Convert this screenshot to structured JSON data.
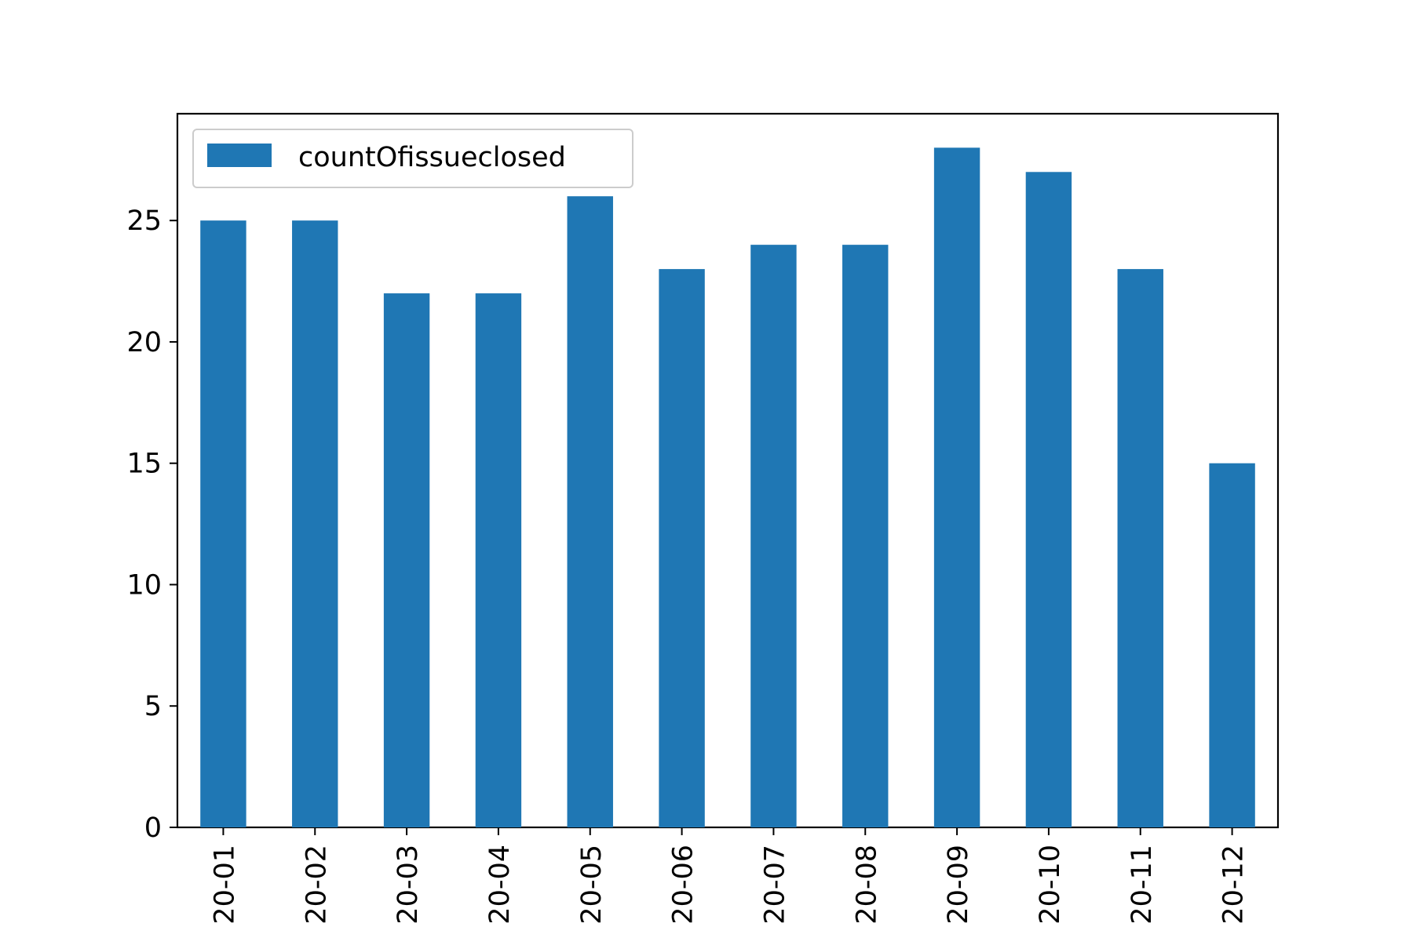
{
  "chart_data": {
    "type": "bar",
    "title": "",
    "xlabel": "",
    "ylabel": "",
    "categories": [
      "20-01",
      "20-02",
      "20-03",
      "20-04",
      "20-05",
      "20-06",
      "20-07",
      "20-08",
      "20-09",
      "20-10",
      "20-11",
      "20-12"
    ],
    "series": [
      {
        "name": "countOfissueclosed",
        "values": [
          25,
          25,
          22,
          22,
          26,
          23,
          24,
          24,
          28,
          27,
          23,
          15
        ],
        "color": "#1f77b4"
      }
    ],
    "ylim": [
      0,
      29.4
    ],
    "yticks": [
      0,
      5,
      10,
      15,
      20,
      25
    ],
    "ytick_labels": [
      "0",
      "5",
      "10",
      "15",
      "20",
      "25"
    ],
    "legend": {
      "position": "upper-left"
    },
    "grid": false
  }
}
